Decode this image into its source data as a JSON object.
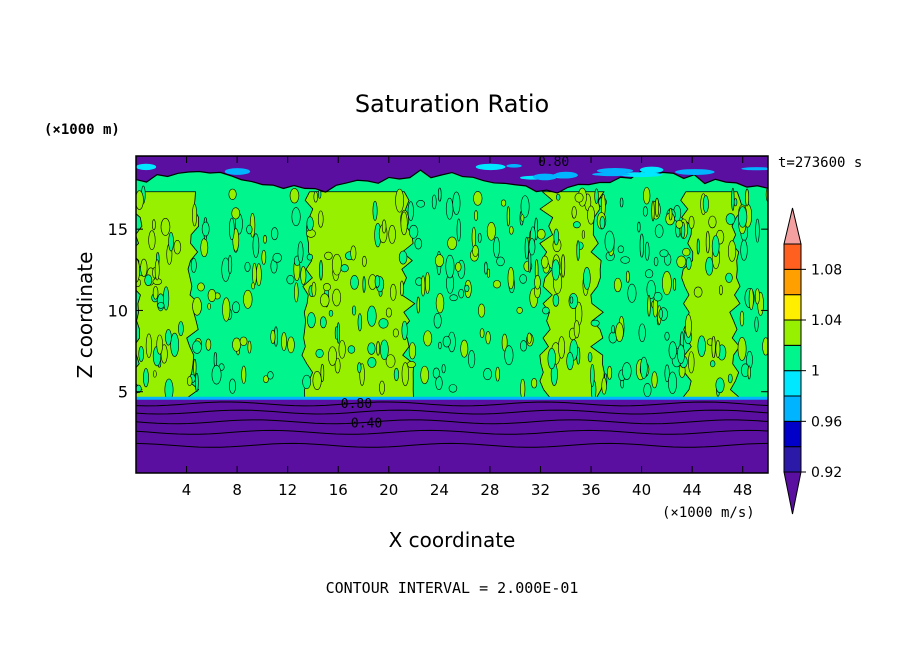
{
  "chart_data": {
    "type": "heatmap",
    "title": "Saturation Ratio",
    "xlabel": "X coordinate",
    "ylabel": "Z coordinate",
    "x_unit": "(×1000 m/s)",
    "y_unit": "(×1000 m)",
    "time_label": "t=273600 s",
    "footer": "CONTOUR INTERVAL = 2.000E-01",
    "xlim": [
      0,
      50
    ],
    "ylim": [
      0,
      19.5
    ],
    "x_ticks": [
      4,
      8,
      12,
      16,
      20,
      24,
      28,
      32,
      36,
      40,
      44,
      48
    ],
    "x_tick_labels": [
      "4",
      "8",
      "12",
      "16",
      "20",
      "24",
      "28",
      "32",
      "36",
      "40",
      "44",
      "48"
    ],
    "y_ticks": [
      5,
      10,
      15
    ],
    "y_tick_labels": [
      "5",
      "10",
      "15"
    ],
    "colorbar": {
      "levels": [
        0.92,
        0.94,
        0.96,
        0.98,
        1.0,
        1.02,
        1.04,
        1.06,
        1.08,
        1.1
      ],
      "labels": [
        {
          "value": 0.92,
          "text": "0.92"
        },
        {
          "value": 0.96,
          "text": "0.96"
        },
        {
          "value": 1.0,
          "text": "1"
        },
        {
          "value": 1.04,
          "text": "1.04"
        },
        {
          "value": 1.08,
          "text": "1.08"
        }
      ],
      "colors": [
        "#5a0fa0",
        "#2b1aa8",
        "#0000c8",
        "#00b4ff",
        "#00e8ff",
        "#00f58c",
        "#96f000",
        "#ffee00",
        "#ffa000",
        "#ff6020",
        "#ff2020",
        "#f4a0a0"
      ]
    },
    "contour_labels": [
      {
        "text": "0.80",
        "x": 31.8,
        "y": 18.9
      },
      {
        "text": "0.80",
        "x": 16.2,
        "y": 4.0
      },
      {
        "text": "0.40",
        "x": 17.0,
        "y": 2.8
      }
    ],
    "layers": {
      "lower_band_top_z": 4.6,
      "upper_band_bottom_z": 17.9,
      "lower_contours_z": [
        4.25,
        3.75,
        3.15,
        2.5,
        1.7
      ],
      "green_region_x_ranges": [
        [
          0,
          4.5
        ],
        [
          13.5,
          21.5
        ],
        [
          32.5,
          36.5
        ],
        [
          43.5,
          47.5
        ]
      ]
    }
  }
}
